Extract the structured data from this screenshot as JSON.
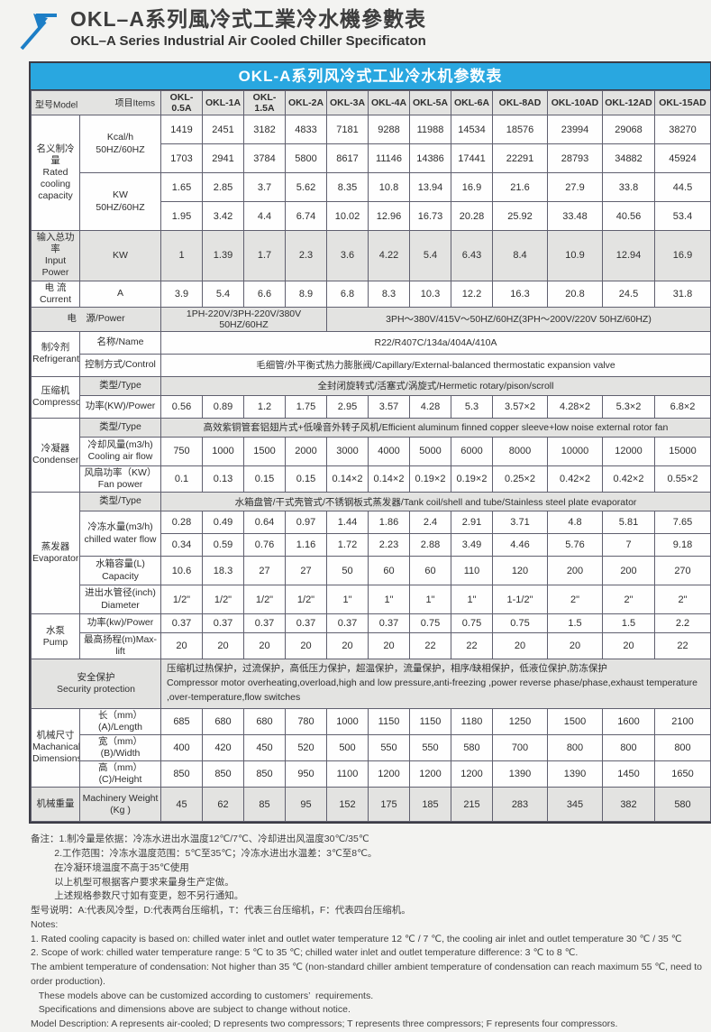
{
  "page": {
    "title_zh": "OKL–A系列風冷式工業冷水機參數表",
    "title_en": "OKL–A Series Industrial Air Cooled Chiller Specificaton"
  },
  "colors": {
    "accent_blue": "#29a7e0",
    "logo_blue": "#1d7ec6",
    "row_gray": "#e3e3e1",
    "border": "#60606f"
  },
  "table": {
    "caption": "OKL-A系列风冷式工业冷水机参数表",
    "corner": {
      "model": "型号Model",
      "items": "项目Items"
    },
    "models": [
      "OKL-0.5A",
      "OKL-1A",
      "OKL-1.5A",
      "OKL-2A",
      "OKL-3A",
      "OKL-4A",
      "OKL-5A",
      "OKL-6A",
      "OKL-8AD",
      "OKL-10AD",
      "OKL-12AD",
      "OKL-15AD"
    ],
    "labels": {
      "capacity_zh": "名义制冷量",
      "capacity_en": "Rated cooling capacity",
      "kcal_unit_l1": "Kcal/h",
      "kcal_unit_l2": "50HZ/60HZ",
      "kw_unit_l1": "KW",
      "kw_unit_l2": "50HZ/60HZ",
      "input_power_zh": "输入总功率",
      "input_power_en": "Input Power",
      "input_power_unit": "KW",
      "current_zh": "电 流",
      "current_en": "Current",
      "current_unit": "A",
      "power_supply": "电　源/Power",
      "refrigerant_zh": "制冷剂",
      "refrigerant_en": "Refrigerant",
      "name": "名称/Name",
      "control": "控制方式/Control",
      "compressor_zh": "压缩机",
      "compressor_en": "Compressor",
      "type": "类型/Type",
      "comp_power": "功率(KW)/Power",
      "condenser_zh": "冷凝器",
      "condenser_en": "Condenser",
      "airflow_l1": "冷却风量(m3/h)",
      "airflow_l2": "Cooling air flow",
      "fan_l1": "风扇功率（KW）",
      "fan_l2": "Fan power",
      "evaporator_zh": "蒸发器",
      "evaporator_en": "Evaporator",
      "chilled_l1": "冷冻水量(m3/h)",
      "chilled_l2": "chilled water flow",
      "tank_l1": "水箱容量(L)",
      "tank_l2": "Capacity",
      "diameter_l1": "进出水管径(inch)",
      "diameter_l2": "Diameter",
      "pump_zh": "水泵",
      "pump_en": "Pump",
      "pump_power": "功率(kw)/Power",
      "max_lift": "最高扬程(m)Max-lift",
      "security_zh": "安全保护",
      "security_en": "Security protection",
      "dims_zh": "机械尺寸",
      "dims_en": "Machanical Dimensions",
      "length": "长（mm）(A)/Length",
      "width": "宽（mm）(B)/Width",
      "height": "高（mm）(C)/Height",
      "weight_zh": "机械重量",
      "weight_en_l1": "Machinery Weight",
      "weight_en_l2": "(Kg )"
    },
    "rows": {
      "kcal_50": [
        "1419",
        "2451",
        "3182",
        "4833",
        "7181",
        "9288",
        "11988",
        "14534",
        "18576",
        "23994",
        "29068",
        "38270"
      ],
      "kcal_60": [
        "1703",
        "2941",
        "3784",
        "5800",
        "8617",
        "11146",
        "14386",
        "17441",
        "22291",
        "28793",
        "34882",
        "45924"
      ],
      "kw_50": [
        "1.65",
        "2.85",
        "3.7",
        "5.62",
        "8.35",
        "10.8",
        "13.94",
        "16.9",
        "21.6",
        "27.9",
        "33.8",
        "44.5"
      ],
      "kw_60": [
        "1.95",
        "3.42",
        "4.4",
        "6.74",
        "10.02",
        "12.96",
        "16.73",
        "20.28",
        "25.92",
        "33.48",
        "40.56",
        "53.4"
      ],
      "input_power": [
        "1",
        "1.39",
        "1.7",
        "2.3",
        "3.6",
        "4.22",
        "5.4",
        "6.43",
        "8.4",
        "10.9",
        "12.94",
        "16.9"
      ],
      "current": [
        "3.9",
        "5.4",
        "6.6",
        "8.9",
        "6.8",
        "8.3",
        "10.3",
        "12.2",
        "16.3",
        "20.8",
        "24.5",
        "31.8"
      ],
      "power_supply_left": "1PH-220V/3PH-220V/380V 50HZ/60HZ",
      "power_supply_right": "3PH～380V/415V～50HZ/60HZ(3PH～200V/220V  50HZ/60HZ)",
      "refrigerant_name": "R22/R407C/134a/404A/410A",
      "refrigerant_control": "毛细管/外平衡式热力膨胀阀/Capillary/External-balanced thermostatic expansion valve",
      "compressor_type": "全封闭旋转式/活塞式/涡旋式/Hermetic rotary/pison/scroll",
      "compressor_power": [
        "0.56",
        "0.89",
        "1.2",
        "1.75",
        "2.95",
        "3.57",
        "4.28",
        "5.3",
        "3.57×2",
        "4.28×2",
        "5.3×2",
        "6.8×2"
      ],
      "condenser_type": "高效紫铜管套铝翅片式+低噪音外转子风机/Efficient aluminum finned copper sleeve+low noise external rotor fan",
      "cooling_air_flow": [
        "750",
        "1000",
        "1500",
        "2000",
        "3000",
        "4000",
        "5000",
        "6000",
        "8000",
        "10000",
        "12000",
        "15000"
      ],
      "fan_power": [
        "0.1",
        "0.13",
        "0.15",
        "0.15",
        "0.14×2",
        "0.14×2",
        "0.19×2",
        "0.19×2",
        "0.25×2",
        "0.42×2",
        "0.42×2",
        "0.55×2"
      ],
      "evaporator_type": "水箱盘管/干式壳管式/不锈钢板式蒸发器/Tank coil/shell and tube/Stainless steel plate evaporator",
      "chilled_50": [
        "0.28",
        "0.49",
        "0.64",
        "0.97",
        "1.44",
        "1.86",
        "2.4",
        "2.91",
        "3.71",
        "4.8",
        "5.81",
        "7.65"
      ],
      "chilled_60": [
        "0.34",
        "0.59",
        "0.76",
        "1.16",
        "1.72",
        "2.23",
        "2.88",
        "3.49",
        "4.46",
        "5.76",
        "7",
        "9.18"
      ],
      "tank_capacity": [
        "10.6",
        "18.3",
        "27",
        "27",
        "50",
        "60",
        "60",
        "110",
        "120",
        "200",
        "200",
        "270"
      ],
      "pipe_diameter": [
        "1/2\"",
        "1/2\"",
        "1/2\"",
        "1/2\"",
        "1\"",
        "1\"",
        "1\"",
        "1\"",
        "1-1/2\"",
        "2\"",
        "2\"",
        "2\""
      ],
      "pump_power": [
        "0.37",
        "0.37",
        "0.37",
        "0.37",
        "0.37",
        "0.37",
        "0.75",
        "0.75",
        "0.75",
        "1.5",
        "1.5",
        "2.2"
      ],
      "max_lift": [
        "20",
        "20",
        "20",
        "20",
        "20",
        "20",
        "22",
        "22",
        "20",
        "20",
        "20",
        "22"
      ],
      "security_zh": "压缩机过热保护，过流保护，高低压力保护，超温保护，流量保护，相序/缺相保护，低液位保护,防冻保护",
      "security_en": "Compressor motor overheating,overload,high and low pressure,anti-freezing ,power reverse phase/phase,exhaust temperature ,over-temperature,flow switches",
      "length": [
        "685",
        "680",
        "680",
        "780",
        "1000",
        "1150",
        "1150",
        "1180",
        "1250",
        "1500",
        "1600",
        "2100"
      ],
      "width": [
        "400",
        "420",
        "450",
        "520",
        "500",
        "550",
        "550",
        "580",
        "700",
        "800",
        "800",
        "800"
      ],
      "height": [
        "850",
        "850",
        "850",
        "950",
        "1100",
        "1200",
        "1200",
        "1200",
        "1390",
        "1390",
        "1450",
        "1650"
      ],
      "weight": [
        "45",
        "62",
        "85",
        "95",
        "152",
        "175",
        "185",
        "215",
        "283",
        "345",
        "382",
        "580"
      ]
    }
  },
  "notes": {
    "zh_lines": [
      "备注：1.制冷量是依据：冷冻水进出水温度12℃/7℃、冷却进出风温度30℃/35℃",
      "         2.工作范围：冷冻水温度范围：5℃至35℃；冷冻水进出水温差：3℃至8℃。",
      "         在冷凝环境温度不高于35℃使用",
      "         以上机型可根据客户要求来量身生产定做。",
      "         上述规格参数尺寸如有变更，恕不另行通知。",
      "型号说明：A:代表风冷型，D:代表两台压缩机，T：代表三台压缩机，F：代表四台压缩机。"
    ],
    "en_lines": [
      "Notes:",
      "1. Rated cooling capacity is based on: chilled water inlet and outlet water temperature 12 ℃ / 7 ℃, the cooling air inlet and outlet temperature 30 ℃ / 35 ℃",
      "2. Scope of work: chilled water temperature range: 5 ℃ to 35 ℃; chilled water inlet and outlet temperature difference: 3 ℃ to 8 ℃.",
      "The ambient temperature of condensation: Not higher than 35 ℃ (non-standard chiller ambient temperature of condensation can reach maximum 55 ℃, need to order production).",
      "   These models above can be customized according to customers’  requirements.",
      "   Specifications and dimensions above are subject to change without notice.",
      "Model Description: A represents air-cooled; D represents two compressors; T represents three compressors; F represents four compressors."
    ]
  }
}
